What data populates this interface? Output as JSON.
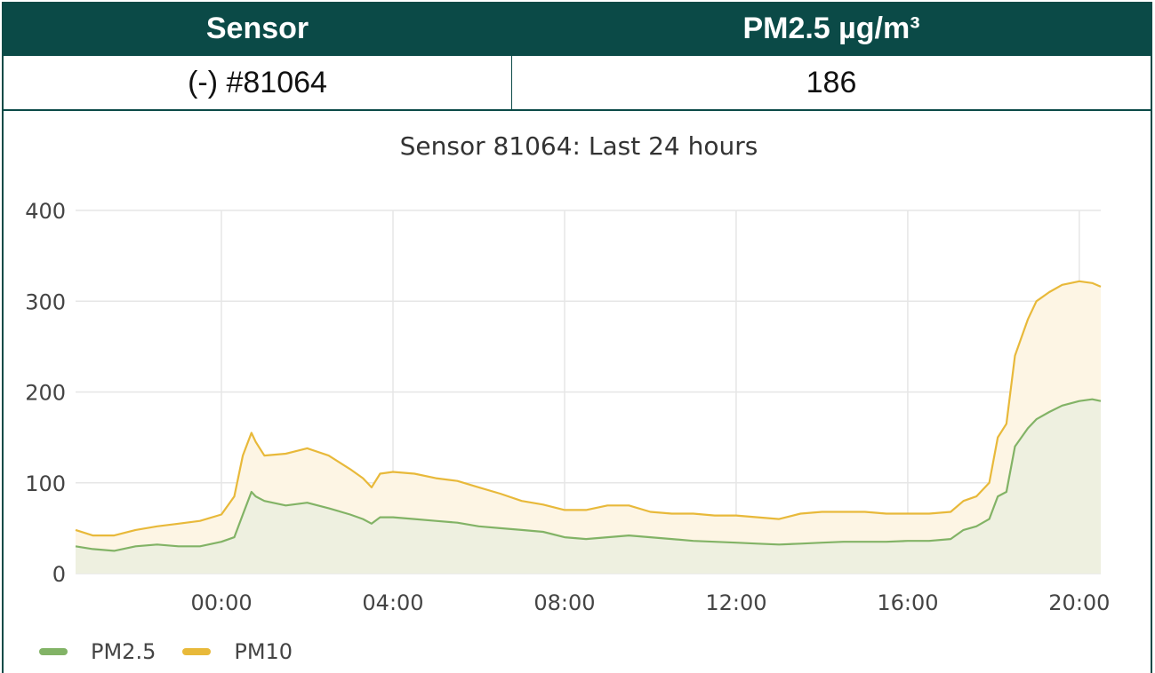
{
  "table": {
    "headers": [
      "Sensor",
      "PM2.5 µg/m³"
    ],
    "row": [
      "(-) #81064",
      "186"
    ]
  },
  "chart_data": {
    "type": "line",
    "title": "Sensor 81064: Last 24 hours",
    "xlabel": "",
    "ylabel": "",
    "ylim": [
      0,
      400
    ],
    "yticks": [
      "0",
      "100",
      "200",
      "300",
      "400"
    ],
    "xlim": [
      -3.4,
      20.5
    ],
    "xticks": [
      {
        "value": 0,
        "label": "00:00"
      },
      {
        "value": 4,
        "label": "04:00"
      },
      {
        "value": 8,
        "label": "08:00"
      },
      {
        "value": 12,
        "label": "12:00"
      },
      {
        "value": 16,
        "label": "16:00"
      },
      {
        "value": 20,
        "label": "20:00"
      }
    ],
    "grid": true,
    "legend_placement": "bottom-left",
    "x": [
      -3.4,
      -3,
      -2.5,
      -2,
      -1.5,
      -1,
      -0.5,
      0,
      0.3,
      0.5,
      0.7,
      0.8,
      1,
      1.5,
      2,
      2.5,
      3,
      3.3,
      3.5,
      3.7,
      4,
      4.5,
      5,
      5.5,
      6,
      6.5,
      7,
      7.5,
      8,
      8.5,
      9,
      9.5,
      10,
      10.5,
      11,
      11.5,
      12,
      12.5,
      13,
      13.5,
      14,
      14.5,
      15,
      15.5,
      16,
      16.5,
      17,
      17.3,
      17.6,
      17.9,
      18.1,
      18.3,
      18.5,
      18.8,
      19,
      19.3,
      19.6,
      20,
      20.3,
      20.5
    ],
    "series": [
      {
        "name": "PM2.5",
        "color": "#82b366",
        "values": [
          30,
          27,
          25,
          30,
          32,
          30,
          30,
          35,
          40,
          65,
          90,
          85,
          80,
          75,
          78,
          72,
          65,
          60,
          55,
          62,
          62,
          60,
          58,
          56,
          52,
          50,
          48,
          46,
          40,
          38,
          40,
          42,
          40,
          38,
          36,
          35,
          34,
          33,
          32,
          33,
          34,
          35,
          35,
          35,
          36,
          36,
          38,
          48,
          52,
          60,
          85,
          90,
          140,
          160,
          170,
          178,
          185,
          190,
          192,
          190
        ],
        "fill": "#eef0e0"
      },
      {
        "name": "PM10",
        "color": "#e8b93a",
        "values": [
          48,
          42,
          42,
          48,
          52,
          55,
          58,
          65,
          85,
          130,
          155,
          145,
          130,
          132,
          138,
          130,
          115,
          105,
          95,
          110,
          112,
          110,
          105,
          102,
          95,
          88,
          80,
          76,
          70,
          70,
          75,
          75,
          68,
          66,
          66,
          64,
          64,
          62,
          60,
          66,
          68,
          68,
          68,
          66,
          66,
          66,
          68,
          80,
          85,
          100,
          150,
          165,
          240,
          280,
          300,
          310,
          318,
          322,
          320,
          316
        ],
        "fill": "#fdf5e4"
      }
    ]
  }
}
